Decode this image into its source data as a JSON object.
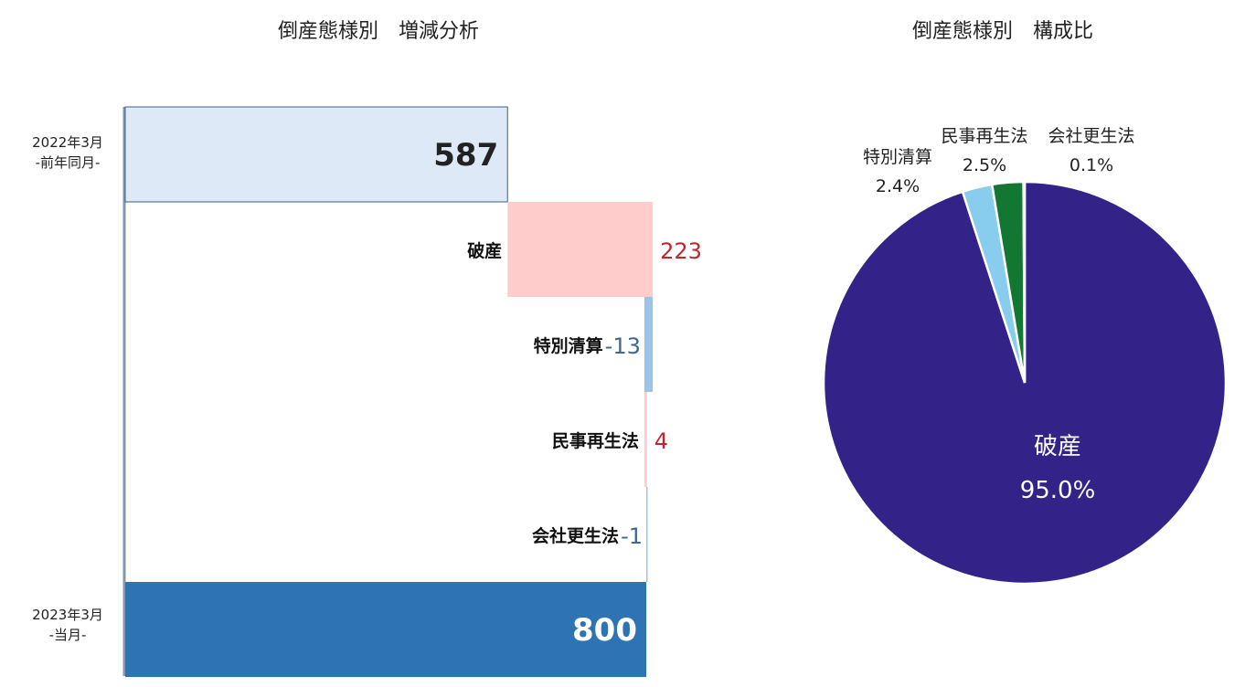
{
  "chart_data": [
    {
      "type": "bar",
      "title": "倒産態様別　増減分析",
      "start": {
        "label_line1": "2022年3月",
        "label_line2": "-前年同月-",
        "value": 587,
        "value_label": "587"
      },
      "steps": [
        {
          "category": "破産",
          "delta": 223,
          "delta_label": "223"
        },
        {
          "category": "特別清算",
          "delta": -13,
          "delta_label": "-13"
        },
        {
          "category": "民事再生法",
          "delta": 4,
          "delta_label": "4"
        },
        {
          "category": "会社更生法",
          "delta": -1,
          "delta_label": "-1"
        }
      ],
      "end": {
        "label_line1": "2023年3月",
        "label_line2": "-当月-",
        "value": 800,
        "value_label": "800"
      },
      "colors": {
        "start": "#dde9f6",
        "start_border": "#3f5f8e",
        "end": "#2e74b5",
        "increase": "#ffcccc",
        "decrease": "#9dc3e6",
        "pos_text": "#c0262e",
        "neg_text": "#3d6796"
      }
    },
    {
      "type": "pie",
      "title": "倒産態様別　構成比",
      "slices": [
        {
          "label": "破産",
          "value": 95.0,
          "value_label": "95.0%",
          "color": "#332288"
        },
        {
          "label": "特別清算",
          "value": 2.4,
          "value_label": "2.4%",
          "color": "#88ccee"
        },
        {
          "label": "民事再生法",
          "value": 2.5,
          "value_label": "2.5%",
          "color": "#117733"
        },
        {
          "label": "会社更生法",
          "value": 0.1,
          "value_label": "0.1%",
          "color": "#ffffff"
        }
      ]
    }
  ]
}
